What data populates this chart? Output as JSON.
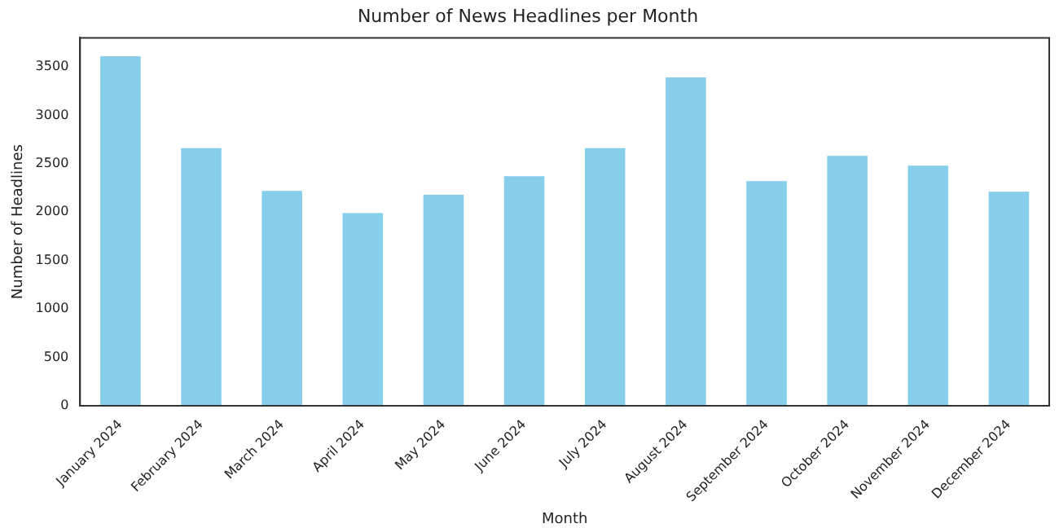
{
  "chart_data": {
    "type": "bar",
    "title": "Number of News Headlines per Month",
    "xlabel": "Month",
    "ylabel": "Number of Headlines",
    "categories": [
      "January 2024",
      "February 2024",
      "March 2024",
      "April 2024",
      "May 2024",
      "June 2024",
      "July 2024",
      "August 2024",
      "September 2024",
      "October 2024",
      "November 2024",
      "December 2024"
    ],
    "values": [
      3610,
      2660,
      2220,
      1990,
      2180,
      2370,
      2660,
      3390,
      2320,
      2580,
      2480,
      2210
    ],
    "color": "#87ceeb",
    "ylim": [
      0,
      3800
    ],
    "yticks": [
      0,
      500,
      1000,
      1500,
      2000,
      2500,
      3000,
      3500
    ],
    "grid": false,
    "legend": false
  }
}
